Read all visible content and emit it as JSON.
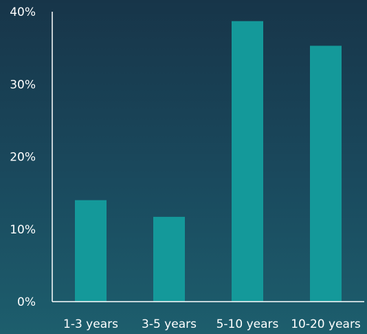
{
  "chart_data": {
    "type": "bar",
    "categories": [
      "1-3 years",
      "3-5 years",
      "5-10 years",
      "10-20 years"
    ],
    "values": [
      14,
      11.7,
      38.7,
      35.3
    ],
    "yticks": [
      "0%",
      "10%",
      "20%",
      "30%",
      "40%"
    ],
    "ylim": [
      0,
      40
    ],
    "grid": false,
    "colors": {
      "bar": "#14999a",
      "axis": "#ffffff",
      "text": "#ffffff"
    }
  }
}
